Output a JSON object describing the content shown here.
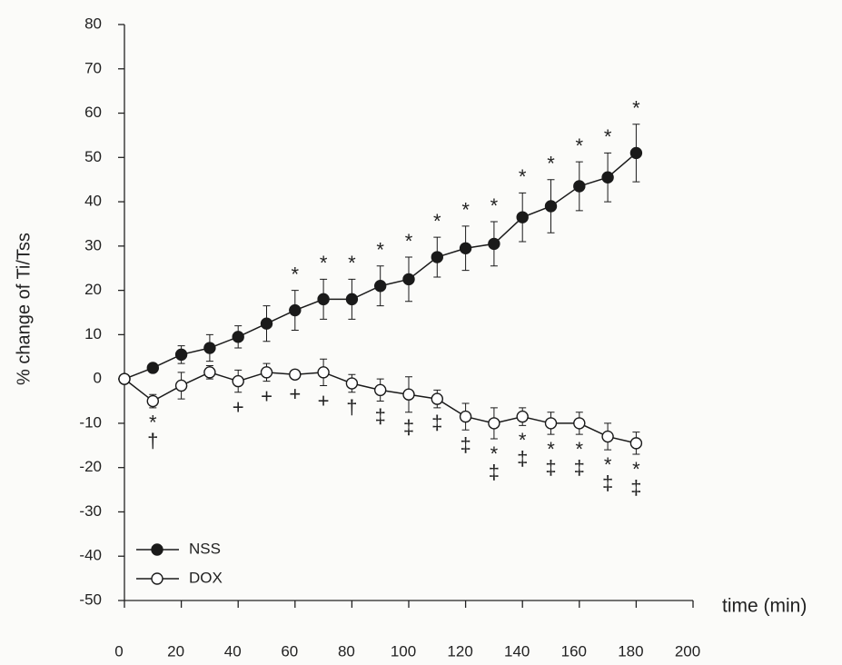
{
  "chart_data": {
    "type": "line",
    "xlabel": "time (min)",
    "ylabel": "% change of Ti/Tss",
    "x": [
      0,
      10,
      20,
      30,
      40,
      50,
      60,
      70,
      80,
      90,
      100,
      110,
      120,
      130,
      140,
      150,
      160,
      170,
      180
    ],
    "xlim": [
      0,
      200
    ],
    "xticks": [
      0,
      20,
      40,
      60,
      80,
      100,
      120,
      140,
      160,
      180,
      200
    ],
    "ylim": [
      -50,
      80
    ],
    "yticks": [
      -50,
      -40,
      -30,
      -20,
      -10,
      0,
      10,
      20,
      30,
      40,
      50,
      60,
      70,
      80
    ],
    "legend": "lower left",
    "series": [
      {
        "name": "NSS",
        "color": "#1a1a1a",
        "marker": "filled",
        "values": [
          0,
          2.5,
          5.5,
          7,
          9.5,
          12.5,
          15.5,
          18,
          18,
          21,
          22.5,
          27.5,
          29.5,
          30.5,
          36.5,
          39,
          43.5,
          45.5,
          51
        ],
        "errors": [
          0,
          1,
          2,
          3,
          2.5,
          4,
          4.5,
          4.5,
          4.5,
          4.5,
          5,
          4.5,
          5,
          5,
          5.5,
          6,
          5.5,
          5.5,
          6.5
        ],
        "annotations": [
          null,
          null,
          null,
          null,
          null,
          null,
          [
            "*"
          ],
          [
            "*"
          ],
          [
            "*"
          ],
          [
            "*"
          ],
          [
            "*"
          ],
          [
            "*"
          ],
          [
            "*"
          ],
          [
            "*"
          ],
          [
            "*"
          ],
          [
            "*"
          ],
          [
            "*"
          ],
          [
            "*"
          ],
          [
            "*"
          ]
        ]
      },
      {
        "name": "DOX",
        "color": "#1a1a1a",
        "marker": "open",
        "values": [
          0,
          -5,
          -1.5,
          1.5,
          -0.5,
          1.5,
          1,
          1.5,
          -1,
          -2.5,
          -3.5,
          -4.5,
          -8.5,
          -10,
          -8.5,
          -10,
          -10,
          -13,
          -14.5
        ],
        "errors": [
          0,
          1.5,
          3,
          1.5,
          2.5,
          2,
          1,
          3,
          2,
          2.5,
          4,
          2,
          3,
          3.5,
          2,
          2.5,
          2.5,
          3,
          2.5
        ],
        "annotations": [
          null,
          [
            "*",
            "†"
          ],
          null,
          null,
          [
            "+"
          ],
          [
            "+"
          ],
          [
            "+"
          ],
          [
            "+"
          ],
          [
            "†"
          ],
          [
            "‡"
          ],
          [
            "‡"
          ],
          [
            "‡"
          ],
          [
            "‡"
          ],
          [
            "*",
            "‡"
          ],
          [
            "*",
            "‡"
          ],
          [
            "*",
            "‡"
          ],
          [
            "*",
            "‡"
          ],
          [
            "*",
            "‡"
          ],
          [
            "*",
            "‡"
          ]
        ]
      }
    ]
  }
}
